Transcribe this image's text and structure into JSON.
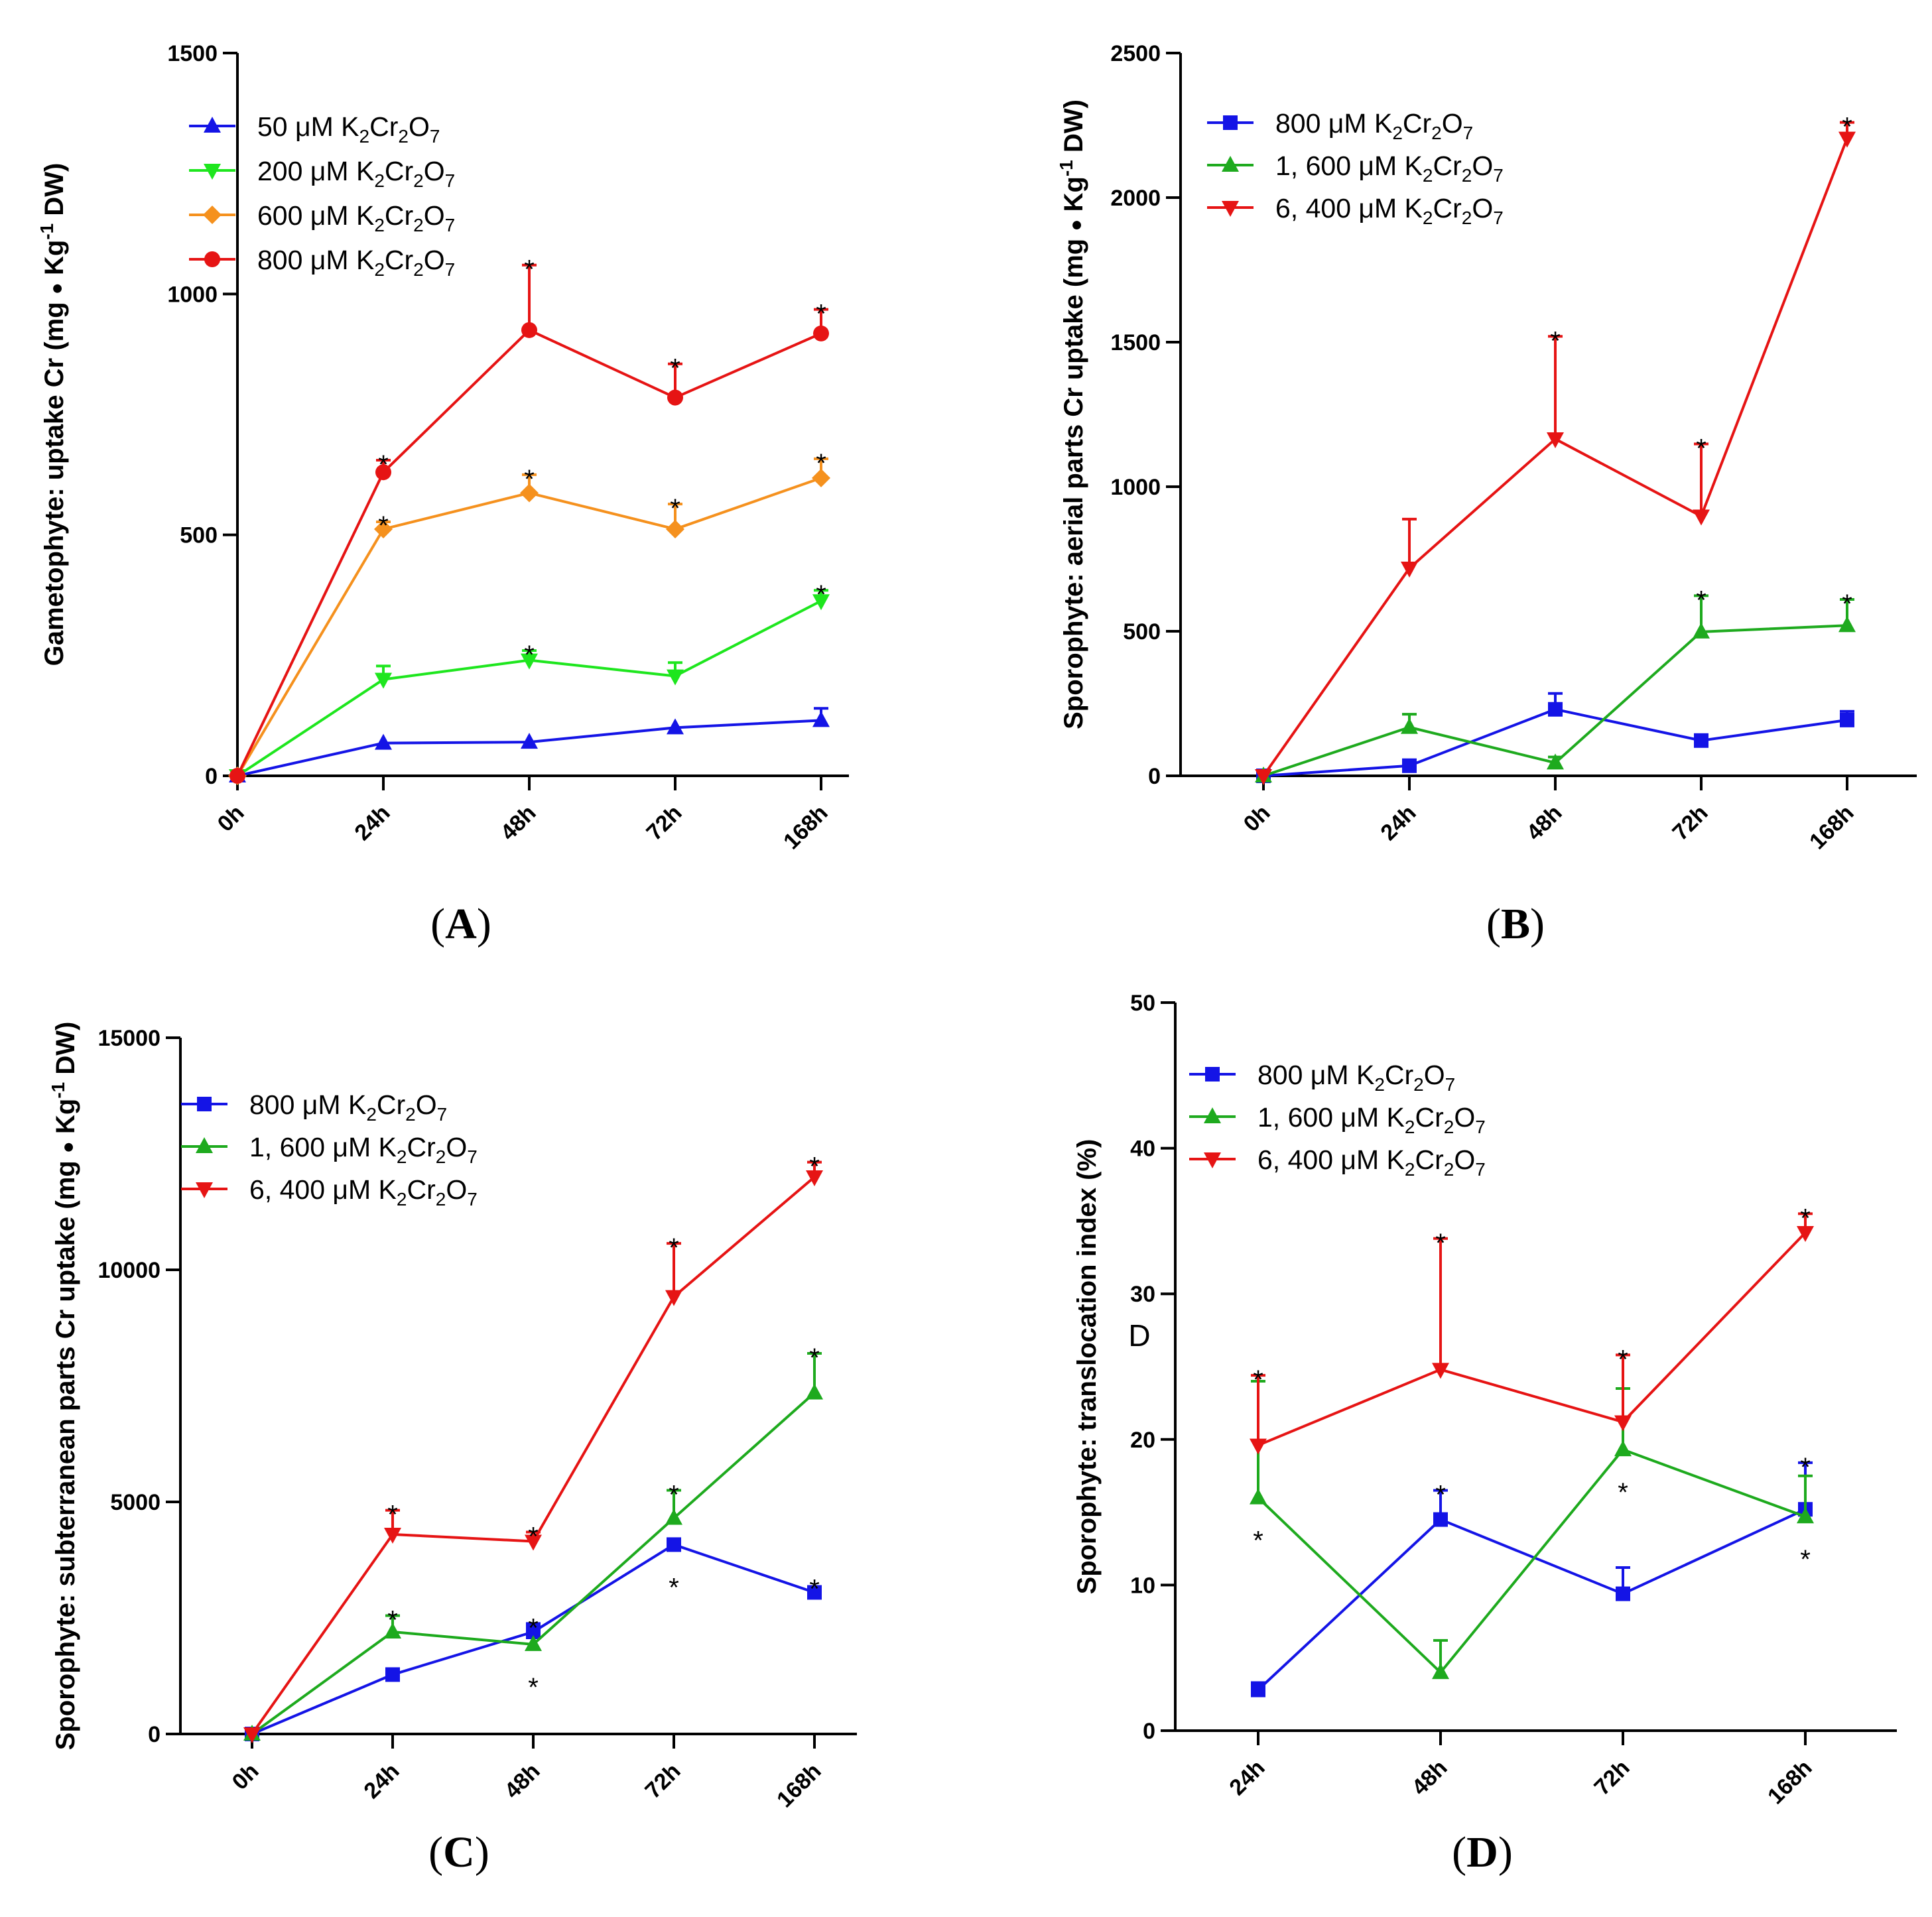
{
  "chart_data": [
    {
      "id": "A",
      "type": "line",
      "panel_label": "A",
      "ylabel_parts": [
        "Gametophyte: uptake Cr (mg ",
        "●",
        " Kg",
        "-1",
        " DW)"
      ],
      "ylim": [
        0,
        1500
      ],
      "yticks": [
        0,
        500,
        1000,
        1500
      ],
      "ytick_labels": [
        "0",
        "500",
        "1000",
        "1500"
      ],
      "categories": [
        "0h",
        "24h",
        "48h",
        "72h",
        "168h"
      ],
      "series": [
        {
          "name": "50 μM K2Cr2O7",
          "label_parts": [
            "50 μM  K",
            "2",
            "Cr",
            "2",
            "O",
            "7"
          ],
          "color": "#1414e6",
          "marker": "triangle-up",
          "values": [
            0,
            68,
            70,
            100,
            115
          ],
          "err": [
            0,
            0,
            0,
            0,
            25
          ],
          "star": [
            false,
            false,
            false,
            false,
            false
          ]
        },
        {
          "name": "200 μM K2Cr2O7",
          "label_parts": [
            "200 μM  K",
            "2",
            "Cr",
            "2",
            "O",
            "7"
          ],
          "color": "#1ee61e",
          "marker": "triangle-down",
          "values": [
            0,
            200,
            240,
            207,
            363
          ],
          "err": [
            0,
            28,
            20,
            28,
            22
          ],
          "star": [
            false,
            false,
            true,
            false,
            true
          ]
        },
        {
          "name": "600 μM K2Cr2O7",
          "label_parts": [
            "600 μM K",
            "2",
            "Cr",
            "2",
            "O",
            "7"
          ],
          "color": "#f5911e",
          "marker": "diamond",
          "values": [
            0,
            512,
            587,
            512,
            618
          ],
          "err": [
            0,
            15,
            38,
            52,
            40
          ],
          "star": [
            false,
            true,
            true,
            true,
            true
          ]
        },
        {
          "name": "800 μM K2Cr2O7",
          "label_parts": [
            "800 μM  K",
            "2",
            "Cr",
            "2",
            "O",
            "7"
          ],
          "color": "#e61414",
          "marker": "circle",
          "values": [
            0,
            630,
            925,
            785,
            918
          ],
          "err": [
            0,
            25,
            135,
            70,
            50
          ],
          "star": [
            false,
            true,
            true,
            true,
            true
          ]
        }
      ]
    },
    {
      "id": "B",
      "type": "line",
      "panel_label": "B",
      "ylabel_parts": [
        "Sporophyte: aerial parts Cr uptake (mg ",
        "●",
        " Kg",
        "-1",
        " DW)"
      ],
      "ylim": [
        0,
        2500
      ],
      "yticks": [
        0,
        500,
        1000,
        1500,
        2000,
        2500
      ],
      "ytick_labels": [
        "0",
        "500",
        "1000",
        "1500",
        "2000",
        "2500"
      ],
      "categories": [
        "0h",
        "24h",
        "48h",
        "72h",
        "168h"
      ],
      "series": [
        {
          "name": "800 μM K2Cr2O7",
          "label_parts": [
            "800 μM  K",
            "2",
            "Cr",
            "2",
            "O",
            "7"
          ],
          "color": "#1414e6",
          "marker": "square",
          "values": [
            0,
            35,
            230,
            122,
            193
          ],
          "err": [
            0,
            0,
            55,
            20,
            30
          ],
          "star": [
            false,
            false,
            false,
            false,
            false
          ]
        },
        {
          "name": "1, 600 μM K2Cr2O7",
          "label_parts": [
            "1, 600 μM  K",
            "2",
            "Cr",
            "2",
            "O",
            "7"
          ],
          "color": "#1eaa1e",
          "marker": "triangle-up",
          "values": [
            0,
            168,
            45,
            498,
            520
          ],
          "err": [
            0,
            45,
            20,
            125,
            90
          ],
          "star": [
            false,
            false,
            false,
            true,
            true
          ]
        },
        {
          "name": "6, 400 μM K2Cr2O7",
          "label_parts": [
            "6, 400 μM  K",
            "2",
            "Cr",
            "2",
            "O",
            "7"
          ],
          "color": "#e61414",
          "marker": "triangle-down",
          "values": [
            0,
            718,
            1165,
            898,
            2205
          ],
          "err": [
            0,
            170,
            355,
            250,
            55
          ],
          "star": [
            false,
            false,
            true,
            true,
            true
          ]
        }
      ]
    },
    {
      "id": "C",
      "type": "line",
      "panel_label": "C",
      "ylabel_parts": [
        "Sporophyte: subterranean parts Cr uptake (mg ",
        "●",
        " Kg",
        "-1",
        " DW)"
      ],
      "ylim": [
        0,
        15000
      ],
      "yticks": [
        0,
        5000,
        10000,
        15000
      ],
      "ytick_labels": [
        "0",
        "5000",
        "10000",
        "15000"
      ],
      "categories": [
        "0h",
        "24h",
        "48h",
        "72h",
        "168h"
      ],
      "series": [
        {
          "name": "800 μM K2Cr2O7",
          "label_parts": [
            "800 μM  K",
            "2",
            "Cr",
            "2",
            "O",
            "7"
          ],
          "color": "#1414e6",
          "marker": "square",
          "values": [
            0,
            1280,
            2200,
            4080,
            3050
          ],
          "err": [
            0,
            0,
            180,
            0,
            0
          ],
          "star": [
            false,
            false,
            true,
            true,
            true
          ],
          "star_below": [
            false,
            false,
            false,
            true,
            false
          ]
        },
        {
          "name": "1, 600 μM K2Cr2O7",
          "label_parts": [
            "1, 600 μM  K",
            "2",
            "Cr",
            "2",
            "O",
            "7"
          ],
          "color": "#1eaa1e",
          "marker": "triangle-up",
          "values": [
            0,
            2200,
            1930,
            4650,
            7350
          ],
          "err": [
            0,
            350,
            0,
            600,
            850
          ],
          "star": [
            false,
            true,
            true,
            true,
            true
          ],
          "star_below": [
            false,
            false,
            true,
            false,
            false
          ]
        },
        {
          "name": "6, 400 μM K2Cr2O7",
          "label_parts": [
            "6, 400 μM  K",
            "2",
            "Cr",
            "2",
            "O",
            "7"
          ],
          "color": "#e61414",
          "marker": "triangle-down",
          "values": [
            0,
            4300,
            4150,
            9420,
            12000
          ],
          "err": [
            0,
            520,
            200,
            1150,
            320
          ],
          "star": [
            false,
            true,
            true,
            true,
            true
          ],
          "star_below": [
            false,
            false,
            false,
            false,
            false
          ]
        }
      ]
    },
    {
      "id": "D",
      "type": "line",
      "panel_label": "D",
      "stray_text": "D",
      "ylabel_parts": [
        "Sporophyte: translocation index (%)"
      ],
      "ylim": [
        0,
        50
      ],
      "yticks": [
        0,
        10,
        20,
        30,
        40,
        50
      ],
      "ytick_labels": [
        "0",
        "10",
        "20",
        "30",
        "40",
        "50"
      ],
      "categories": [
        "24h",
        "48h",
        "72h",
        "168h"
      ],
      "series": [
        {
          "name": "800 μM K2Cr2O7",
          "label_parts": [
            "800 μM  K",
            "2",
            "Cr",
            "2",
            "O",
            "7"
          ],
          "color": "#1414e6",
          "marker": "square",
          "values": [
            2.8,
            14.5,
            9.4,
            15.2
          ],
          "err": [
            0.5,
            2.0,
            1.8,
            3.2
          ],
          "star": [
            false,
            true,
            false,
            true
          ],
          "star_below": [
            false,
            false,
            false,
            false
          ]
        },
        {
          "name": "1, 600 μM K2Cr2O7",
          "label_parts": [
            "1, 600 μM  K",
            "2",
            "Cr",
            "2",
            "O",
            "7"
          ],
          "color": "#1eaa1e",
          "marker": "triangle-up",
          "values": [
            16.0,
            4.0,
            19.3,
            14.7
          ],
          "err": [
            8.0,
            2.2,
            4.2,
            2.8
          ],
          "star": [
            true,
            false,
            true,
            true
          ],
          "star_below": [
            true,
            false,
            true,
            true
          ]
        },
        {
          "name": "6, 400 μM K2Cr2O7",
          "label_parts": [
            "6, 400 μM  K",
            "2",
            "Cr",
            "2",
            "O",
            "7"
          ],
          "color": "#e61414",
          "marker": "triangle-down",
          "values": [
            19.6,
            24.8,
            21.2,
            34.2
          ],
          "err": [
            4.8,
            9.0,
            4.6,
            1.3
          ],
          "star": [
            true,
            true,
            true,
            true
          ],
          "star_below": [
            false,
            false,
            false,
            false
          ]
        }
      ]
    }
  ]
}
